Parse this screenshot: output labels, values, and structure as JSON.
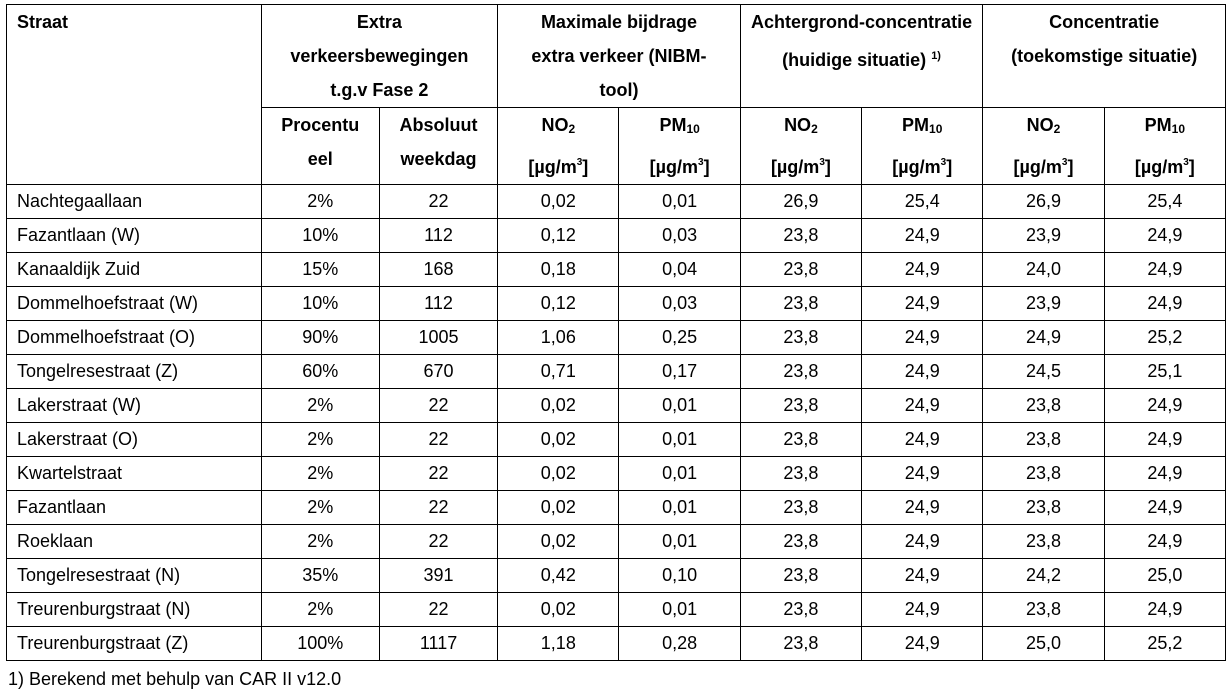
{
  "headers": {
    "straat": "Straat",
    "extra_group": "Extra verkeersbewegingen t.g.v Fase 2",
    "max_group": "Maximale bijdrage extra verkeer (NIBM-tool)",
    "achter_group": "Achtergrond-concentratie (huidige situatie)",
    "achter_note": "1)",
    "conc_group": "Concentratie (toekomstige situatie)",
    "procentueel": "Procentueel",
    "absoluut": "Absoluut weekdag",
    "no_base": "NO",
    "no_sub": "2",
    "pm_base": "PM",
    "pm_sub": "10",
    "unit_base": "[µg/m",
    "unit_sup": "3",
    "unit_close": "]"
  },
  "rows": [
    {
      "straat": "Nachtegaallaan",
      "procent": "2%",
      "absoluut": "22",
      "max_no2": "0,02",
      "max_pm10": "0,01",
      "ach_no2": "26,9",
      "ach_pm10": "25,4",
      "con_no2": "26,9",
      "con_pm10": "25,4"
    },
    {
      "straat": "Fazantlaan (W)",
      "procent": "10%",
      "absoluut": "112",
      "max_no2": "0,12",
      "max_pm10": "0,03",
      "ach_no2": "23,8",
      "ach_pm10": "24,9",
      "con_no2": "23,9",
      "con_pm10": "24,9"
    },
    {
      "straat": "Kanaaldijk Zuid",
      "procent": "15%",
      "absoluut": "168",
      "max_no2": "0,18",
      "max_pm10": "0,04",
      "ach_no2": "23,8",
      "ach_pm10": "24,9",
      "con_no2": "24,0",
      "con_pm10": "24,9"
    },
    {
      "straat": "Dommelhoefstraat (W)",
      "procent": "10%",
      "absoluut": "112",
      "max_no2": "0,12",
      "max_pm10": "0,03",
      "ach_no2": "23,8",
      "ach_pm10": "24,9",
      "con_no2": "23,9",
      "con_pm10": "24,9"
    },
    {
      "straat": "Dommelhoefstraat (O)",
      "procent": "90%",
      "absoluut": "1005",
      "max_no2": "1,06",
      "max_pm10": "0,25",
      "ach_no2": "23,8",
      "ach_pm10": "24,9",
      "con_no2": "24,9",
      "con_pm10": "25,2"
    },
    {
      "straat": "Tongelresestraat (Z)",
      "procent": "60%",
      "absoluut": "670",
      "max_no2": "0,71",
      "max_pm10": "0,17",
      "ach_no2": "23,8",
      "ach_pm10": "24,9",
      "con_no2": "24,5",
      "con_pm10": "25,1"
    },
    {
      "straat": "Lakerstraat (W)",
      "procent": "2%",
      "absoluut": "22",
      "max_no2": "0,02",
      "max_pm10": "0,01",
      "ach_no2": "23,8",
      "ach_pm10": "24,9",
      "con_no2": "23,8",
      "con_pm10": "24,9"
    },
    {
      "straat": "Lakerstraat (O)",
      "procent": "2%",
      "absoluut": "22",
      "max_no2": "0,02",
      "max_pm10": "0,01",
      "ach_no2": "23,8",
      "ach_pm10": "24,9",
      "con_no2": "23,8",
      "con_pm10": "24,9"
    },
    {
      "straat": "Kwartelstraat",
      "procent": "2%",
      "absoluut": "22",
      "max_no2": "0,02",
      "max_pm10": "0,01",
      "ach_no2": "23,8",
      "ach_pm10": "24,9",
      "con_no2": "23,8",
      "con_pm10": "24,9"
    },
    {
      "straat": "Fazantlaan",
      "procent": "2%",
      "absoluut": "22",
      "max_no2": "0,02",
      "max_pm10": "0,01",
      "ach_no2": "23,8",
      "ach_pm10": "24,9",
      "con_no2": "23,8",
      "con_pm10": "24,9"
    },
    {
      "straat": "Roeklaan",
      "procent": "2%",
      "absoluut": "22",
      "max_no2": "0,02",
      "max_pm10": "0,01",
      "ach_no2": "23,8",
      "ach_pm10": "24,9",
      "con_no2": "23,8",
      "con_pm10": "24,9"
    },
    {
      "straat": "Tongelresestraat (N)",
      "procent": "35%",
      "absoluut": "391",
      "max_no2": "0,42",
      "max_pm10": "0,10",
      "ach_no2": "23,8",
      "ach_pm10": "24,9",
      "con_no2": "24,2",
      "con_pm10": "25,0"
    },
    {
      "straat": "Treurenburgstraat (N)",
      "procent": "2%",
      "absoluut": "22",
      "max_no2": "0,02",
      "max_pm10": "0,01",
      "ach_no2": "23,8",
      "ach_pm10": "24,9",
      "con_no2": "23,8",
      "con_pm10": "24,9"
    },
    {
      "straat": "Treurenburgstraat (Z)",
      "procent": "100%",
      "absoluut": "1117",
      "max_no2": "1,18",
      "max_pm10": "0,28",
      "ach_no2": "23,8",
      "ach_pm10": "24,9",
      "con_no2": "25,0",
      "con_pm10": "25,2"
    }
  ],
  "footnote": "1) Berekend met behulp van CAR II v12.0"
}
